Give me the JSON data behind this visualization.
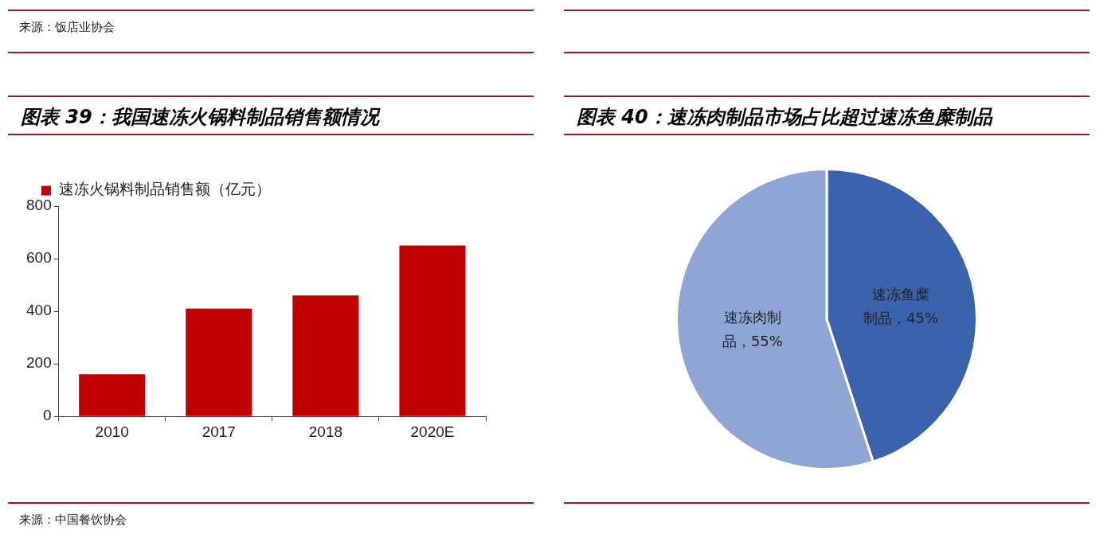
{
  "chart_data": [
    {
      "type": "bar",
      "title": "图表 39：我国速冻火锅料制品销售额情况",
      "categories": [
        "2010",
        "2017",
        "2018",
        "2020E"
      ],
      "series": [
        {
          "name": "速冻火锅料制品销售额（亿元）",
          "color": "#c00000",
          "values": [
            160,
            410,
            460,
            650
          ]
        }
      ],
      "ylim": [
        0,
        800
      ],
      "yticks": [
        0,
        200,
        400,
        600,
        800
      ],
      "legend": "top",
      "annotations": [
        "来源：饭店业协会",
        "来源：中国餐饮协会"
      ]
    },
    {
      "type": "pie",
      "title": "图表 40：速冻肉制品市场占比超过速冻鱼糜制品",
      "categories": [
        "速冻鱼糜制品",
        "速冻肉制品"
      ],
      "values": [
        45,
        55
      ],
      "colors": [
        "#3a62ad",
        "#8fa5d6"
      ],
      "value_labels": [
        "45%",
        "55%"
      ]
    }
  ]
}
